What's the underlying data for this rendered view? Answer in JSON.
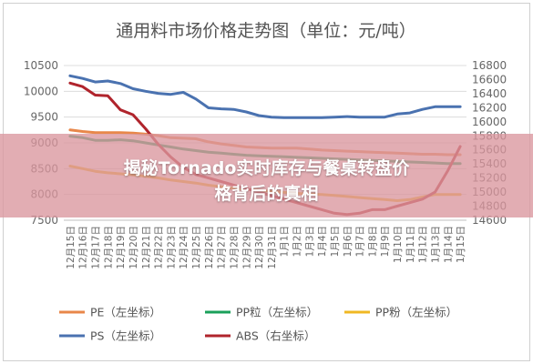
{
  "overlay": {
    "headline_line1": "揭秘Tornado实时库存与餐桌转盘价",
    "headline_line2": "格背后的真相"
  },
  "chart_data": {
    "type": "line",
    "title": "通用料市场价格走势图（单位：元/吨）",
    "categories": [
      "12月15日",
      "12月16日",
      "12月17日",
      "12月18日",
      "12月19日",
      "12月20日",
      "12月21日",
      "12月22日",
      "12月23日",
      "12月24日",
      "12月25日",
      "12月26日",
      "12月27日",
      "12月28日",
      "12月29日",
      "12月30日",
      "12月31日",
      "1月1日",
      "1月2日",
      "1月3日",
      "1月4日",
      "1月5日",
      "1月6日",
      "1月7日",
      "1月8日",
      "1月9日",
      "1月10日",
      "1月11日",
      "1月12日",
      "1月13日",
      "1月14日",
      "1月15日"
    ],
    "left_axis": {
      "ylim": [
        7500,
        10500
      ],
      "ticks": [
        7500,
        8000,
        8500,
        9000,
        9500,
        10000,
        10500
      ]
    },
    "right_axis": {
      "ylim": [
        14600,
        16800
      ],
      "ticks": [
        14600,
        14800,
        15000,
        15200,
        15400,
        15600,
        15800,
        16000,
        16200,
        16400,
        16600,
        16800
      ]
    },
    "grid": true,
    "legend_position": "bottom",
    "series": [
      {
        "name": "PE",
        "axis_note": "（左坐标）",
        "axis": "left",
        "color": "#e8874a",
        "values": [
          9250,
          9220,
          9200,
          9200,
          9200,
          9190,
          9170,
          9140,
          9100,
          9090,
          9080,
          9020,
          8980,
          8950,
          8920,
          8910,
          8900,
          8900,
          8900,
          8880,
          8860,
          8850,
          8840,
          8830,
          8820,
          8810,
          8800,
          8790,
          8780,
          8780,
          8770,
          8770
        ]
      },
      {
        "name": "PP粒",
        "axis_note": "（左坐标）",
        "axis": "left",
        "color": "#1aa05a",
        "values": [
          9130,
          9100,
          9050,
          9050,
          9060,
          9040,
          9000,
          8960,
          8920,
          8880,
          8850,
          8820,
          8800,
          8780,
          8760,
          8750,
          8740,
          8730,
          8720,
          8710,
          8700,
          8690,
          8680,
          8670,
          8660,
          8650,
          8640,
          8630,
          8620,
          8610,
          8600,
          8600
        ]
      },
      {
        "name": "PP粉",
        "axis_note": "（左坐标）",
        "axis": "left",
        "color": "#f0b823",
        "values": [
          8550,
          8500,
          8450,
          8420,
          8400,
          8380,
          8350,
          8320,
          8280,
          8250,
          8220,
          8180,
          8150,
          8120,
          8100,
          8080,
          8060,
          8040,
          8020,
          8010,
          8000,
          7980,
          7960,
          7940,
          7920,
          7900,
          7880,
          7900,
          7950,
          8000,
          8000,
          8000
        ]
      },
      {
        "name": "PS",
        "axis_note": "（左坐标）",
        "axis": "left",
        "color": "#4a72b0",
        "values": [
          10300,
          10250,
          10180,
          10200,
          10150,
          10050,
          10000,
          9960,
          9940,
          9980,
          9850,
          9680,
          9660,
          9650,
          9600,
          9530,
          9500,
          9490,
          9490,
          9490,
          9490,
          9500,
          9510,
          9500,
          9500,
          9500,
          9560,
          9580,
          9650,
          9700,
          9700,
          9700
        ]
      },
      {
        "name": "ABS",
        "axis_note": "（右坐标）",
        "axis": "right",
        "color": "#b0242c",
        "values": [
          16550,
          16500,
          16380,
          16370,
          16170,
          16100,
          15900,
          15680,
          15500,
          15350,
          15250,
          15200,
          15150,
          15100,
          15050,
          15000,
          14950,
          14900,
          14850,
          14800,
          14750,
          14700,
          14680,
          14700,
          14750,
          14750,
          14800,
          14850,
          14900,
          15000,
          15300,
          15650
        ]
      }
    ]
  }
}
